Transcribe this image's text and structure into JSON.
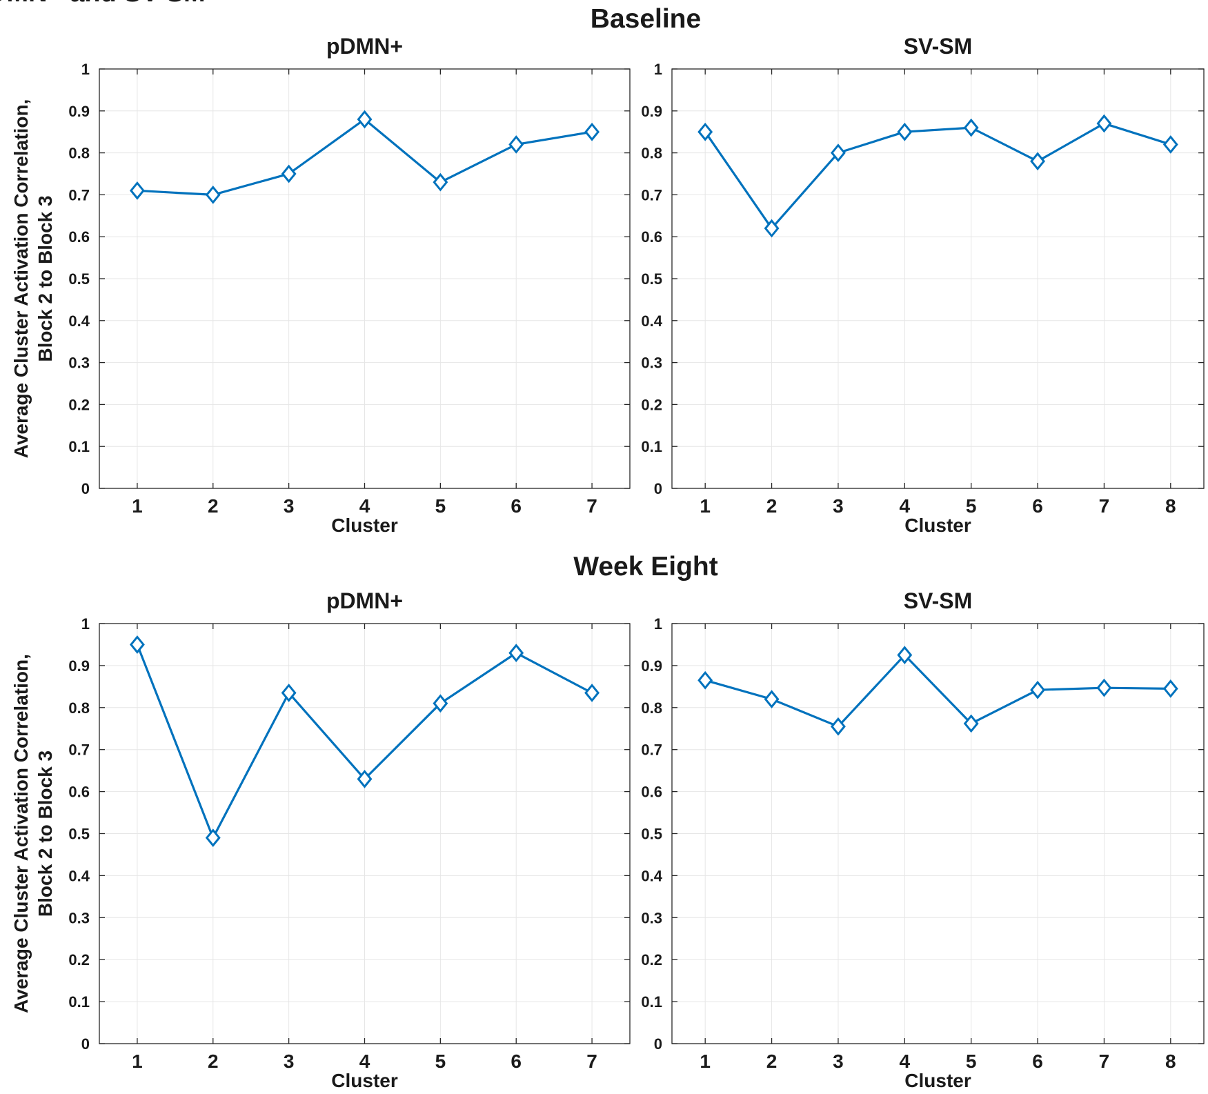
{
  "figure": {
    "cropped_heading": "DMN+ and SV-SM",
    "section_titles": [
      "Baseline",
      "Week Eight"
    ],
    "line_color": "#0072BD",
    "grid_color": "#e6e6e6",
    "axis_color": "#262626"
  },
  "chart_data": [
    {
      "type": "line",
      "section": "Baseline",
      "title": "pDMN+",
      "xlabel": "Cluster",
      "ylabel": [
        "Average Cluster Activation Correlation,",
        "Block 2 to Block 3"
      ],
      "x": [
        1,
        2,
        3,
        4,
        5,
        6,
        7
      ],
      "xlim": [
        0.5,
        7.5
      ],
      "ylim": [
        0,
        1
      ],
      "yticks": [
        0,
        0.1,
        0.2,
        0.3,
        0.4,
        0.5,
        0.6,
        0.7,
        0.8,
        0.9,
        1
      ],
      "yticklabels": [
        "0",
        "0.1",
        "0.2",
        "0.3",
        "0.4",
        "0.5",
        "0.6",
        "0.7",
        "0.8",
        "0.9",
        "1"
      ],
      "grid": true,
      "marker": "diamond",
      "series": [
        {
          "values": [
            0.71,
            0.7,
            0.75,
            0.88,
            0.73,
            0.82,
            0.85
          ]
        }
      ]
    },
    {
      "type": "line",
      "section": "Baseline",
      "title": "SV-SM",
      "xlabel": "Cluster",
      "ylabel": [],
      "x": [
        1,
        2,
        3,
        4,
        5,
        6,
        7,
        8
      ],
      "xlim": [
        0.5,
        8.5
      ],
      "ylim": [
        0,
        1
      ],
      "yticks": [
        0,
        0.1,
        0.2,
        0.3,
        0.4,
        0.5,
        0.6,
        0.7,
        0.8,
        0.9,
        1
      ],
      "yticklabels": [
        "0",
        "0.1",
        "0.2",
        "0.3",
        "0.4",
        "0.5",
        "0.6",
        "0.7",
        "0.8",
        "0.9",
        "1"
      ],
      "grid": true,
      "marker": "diamond",
      "series": [
        {
          "values": [
            0.85,
            0.62,
            0.8,
            0.85,
            0.86,
            0.78,
            0.87,
            0.82
          ]
        }
      ]
    },
    {
      "type": "line",
      "section": "Week Eight",
      "title": "pDMN+",
      "xlabel": "Cluster",
      "ylabel": [
        "Average Cluster Activation Correlation,",
        "Block 2 to Block 3"
      ],
      "x": [
        1,
        2,
        3,
        4,
        5,
        6,
        7
      ],
      "xlim": [
        0.5,
        7.5
      ],
      "ylim": [
        0,
        1
      ],
      "yticks": [
        0,
        0.1,
        0.2,
        0.3,
        0.4,
        0.5,
        0.6,
        0.7,
        0.8,
        0.9,
        1
      ],
      "yticklabels": [
        "0",
        "0.1",
        "0.2",
        "0.3",
        "0.4",
        "0.5",
        "0.6",
        "0.7",
        "0.8",
        "0.9",
        "1"
      ],
      "grid": true,
      "marker": "diamond",
      "series": [
        {
          "values": [
            0.95,
            0.49,
            0.835,
            0.63,
            0.81,
            0.93,
            0.835
          ]
        }
      ]
    },
    {
      "type": "line",
      "section": "Week Eight",
      "title": "SV-SM",
      "xlabel": "Cluster",
      "ylabel": [],
      "x": [
        1,
        2,
        3,
        4,
        5,
        6,
        7,
        8
      ],
      "xlim": [
        0.5,
        8.5
      ],
      "ylim": [
        0,
        1
      ],
      "yticks": [
        0,
        0.1,
        0.2,
        0.3,
        0.4,
        0.5,
        0.6,
        0.7,
        0.8,
        0.9,
        1
      ],
      "yticklabels": [
        "0",
        "0.1",
        "0.2",
        "0.3",
        "0.4",
        "0.5",
        "0.6",
        "0.7",
        "0.8",
        "0.9",
        "1"
      ],
      "grid": true,
      "marker": "diamond",
      "series": [
        {
          "values": [
            0.865,
            0.82,
            0.755,
            0.925,
            0.762,
            0.842,
            0.847,
            0.845
          ]
        }
      ]
    }
  ]
}
